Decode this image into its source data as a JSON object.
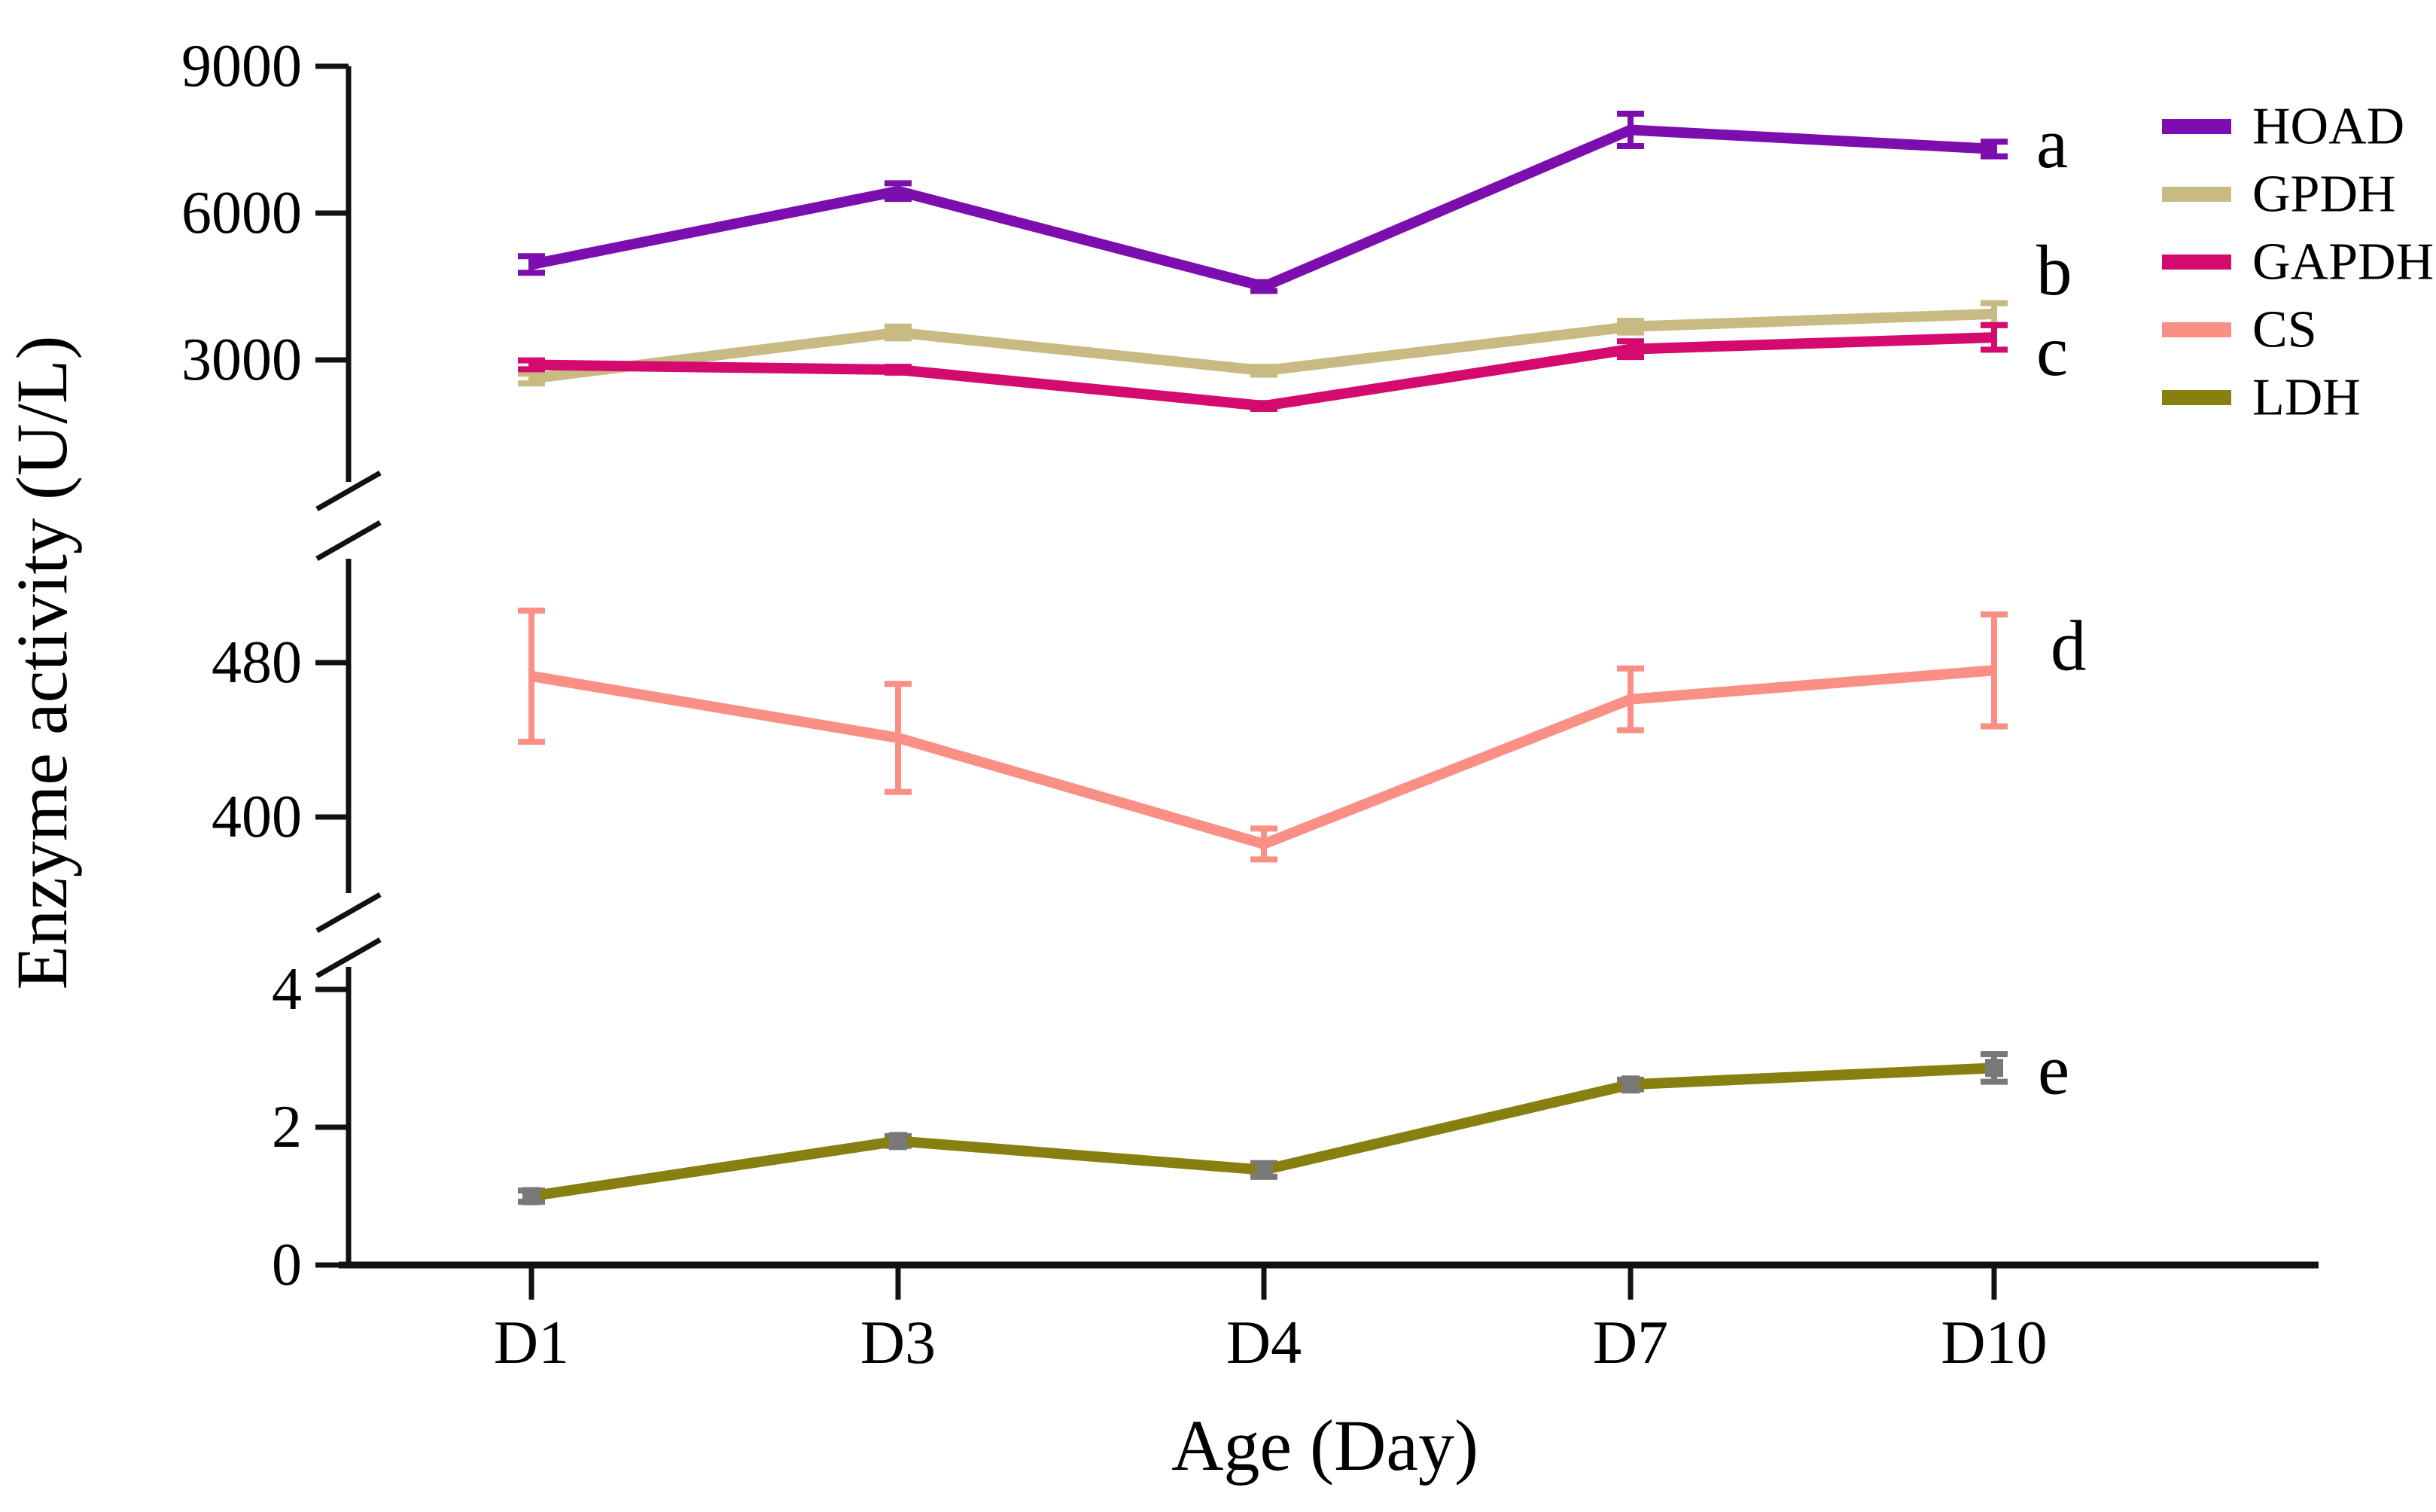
{
  "figure": {
    "background": "#ffffff",
    "axis_color": "#111111",
    "letter_color": "#000000"
  },
  "chart_data": {
    "type": "line",
    "title": "",
    "xlabel": "Age (Day)",
    "ylabel": "Enzyme activity (U/L)",
    "categories": [
      "D1",
      "D3",
      "D4",
      "D7",
      "D10"
    ],
    "broken_y_axis": {
      "segments": [
        {
          "ticks": [
            "3000",
            "6000",
            "9000"
          ],
          "tick_values": [
            3000,
            6000,
            9000
          ],
          "approx_range": [
            2300,
            9000
          ]
        },
        {
          "ticks": [
            "400",
            "480"
          ],
          "tick_values": [
            400,
            480
          ],
          "approx_range": [
            361,
            532
          ]
        },
        {
          "ticks": [
            "0",
            "2",
            "4"
          ],
          "tick_values": [
            0,
            2,
            4
          ],
          "approx_range": [
            0,
            4.35
          ]
        }
      ]
    },
    "series": [
      {
        "name": "HOAD",
        "color": "#7C0EAF",
        "segment": 0,
        "letter": "a",
        "values": [
          4950,
          6450,
          4500,
          7700,
          7310
        ],
        "errors": [
          170,
          160,
          90,
          330,
          150
        ],
        "marker": "tick",
        "error_color": "#7C0EAF"
      },
      {
        "name": "GPDH",
        "color": "#C7BA83",
        "segment": 0,
        "letter": "b",
        "values": [
          2620,
          3560,
          2780,
          3680,
          3940
        ],
        "errors": [
          100,
          120,
          80,
          120,
          220
        ],
        "marker": "tick",
        "error_color": "#C7BA83"
      },
      {
        "name": "GAPDH",
        "color": "#D40A6E",
        "segment": 0,
        "letter": "c",
        "values": [
          2900,
          2800,
          2060,
          3220,
          3460
        ],
        "errors": [
          90,
          60,
          60,
          160,
          250
        ],
        "marker": "tick",
        "error_color": "#D40A6E"
      },
      {
        "name": "CS",
        "color": "#FA8F85",
        "segment": 1,
        "letter": "d",
        "values": [
          473,
          441,
          386,
          461,
          476
        ],
        "errors": [
          34,
          28,
          8,
          16,
          29
        ],
        "marker": "tick",
        "error_color": "#FA8F85"
      },
      {
        "name": "LDH",
        "color": "#877F10",
        "segment": 2,
        "letter": "e",
        "values": [
          1.0,
          1.8,
          1.38,
          2.62,
          2.86
        ],
        "errors": [
          0.08,
          0.07,
          0.1,
          0.07,
          0.2
        ],
        "marker": "square",
        "marker_color": "#787878",
        "error_color": "#787878"
      }
    ],
    "legend": {
      "position": "top-right",
      "entries": [
        "HOAD",
        "GPDH",
        "GAPDH",
        "CS",
        "LDH"
      ]
    },
    "grid": false
  }
}
